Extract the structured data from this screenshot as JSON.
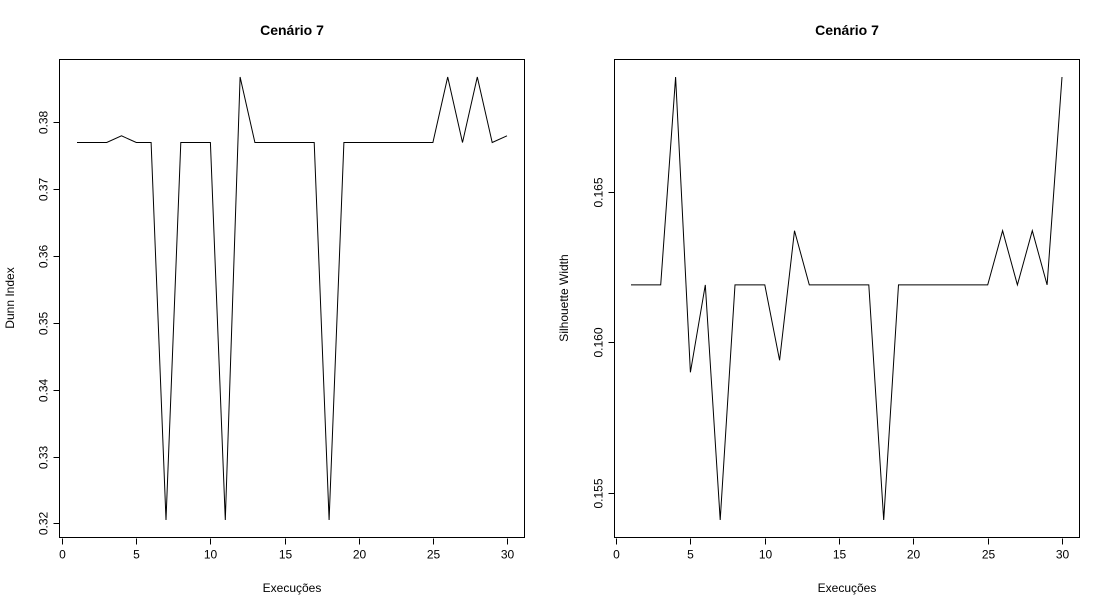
{
  "chart_data": [
    {
      "type": "line",
      "title": "Cenário 7",
      "xlabel": "Execuções",
      "ylabel": "Dunn Index",
      "xlim": [
        1,
        30
      ],
      "ylim": [
        0.3205,
        0.3868
      ],
      "xticks": [
        0,
        5,
        10,
        15,
        20,
        25,
        30
      ],
      "yticks": [
        0.32,
        0.33,
        0.34,
        0.35,
        0.36,
        0.37,
        0.38
      ],
      "ytick_labels": [
        "0.32",
        "0.33",
        "0.34",
        "0.35",
        "0.36",
        "0.37",
        "0.38"
      ],
      "grid": false,
      "series": [
        {
          "x": [
            1,
            2,
            3,
            4,
            5,
            6,
            7,
            8,
            9,
            10,
            11,
            12,
            13,
            14,
            15,
            16,
            17,
            18,
            19,
            20,
            21,
            22,
            23,
            24,
            25,
            26,
            27,
            28,
            29,
            30
          ],
          "values": [
            0.377,
            0.377,
            0.377,
            0.378,
            0.377,
            0.377,
            0.3205,
            0.377,
            0.377,
            0.377,
            0.3205,
            0.3868,
            0.377,
            0.377,
            0.377,
            0.377,
            0.377,
            0.3205,
            0.377,
            0.377,
            0.377,
            0.377,
            0.377,
            0.377,
            0.377,
            0.3868,
            0.377,
            0.3868,
            0.377,
            0.378
          ]
        }
      ]
    },
    {
      "type": "line",
      "title": "Cenário 7",
      "xlabel": "Execuções",
      "ylabel": "Silhouette Width",
      "xlim": [
        1,
        30
      ],
      "ylim": [
        0.1541,
        0.1688
      ],
      "xticks": [
        0,
        5,
        10,
        15,
        20,
        25,
        30
      ],
      "yticks": [
        0.155,
        0.16,
        0.165
      ],
      "ytick_labels": [
        "0.155",
        "0.160",
        "0.165"
      ],
      "grid": false,
      "series": [
        {
          "x": [
            1,
            2,
            3,
            4,
            5,
            6,
            7,
            8,
            9,
            10,
            11,
            12,
            13,
            14,
            15,
            16,
            17,
            18,
            19,
            20,
            21,
            22,
            23,
            24,
            25,
            26,
            27,
            28,
            29,
            30
          ],
          "values": [
            0.1619,
            0.1619,
            0.1619,
            0.1688,
            0.159,
            0.1619,
            0.1541,
            0.1619,
            0.1619,
            0.1619,
            0.1594,
            0.1637,
            0.1619,
            0.1619,
            0.1619,
            0.1619,
            0.1619,
            0.1541,
            0.1619,
            0.1619,
            0.1619,
            0.1619,
            0.1619,
            0.1619,
            0.1619,
            0.1637,
            0.1619,
            0.1637,
            0.1619,
            0.1688
          ]
        }
      ]
    }
  ]
}
